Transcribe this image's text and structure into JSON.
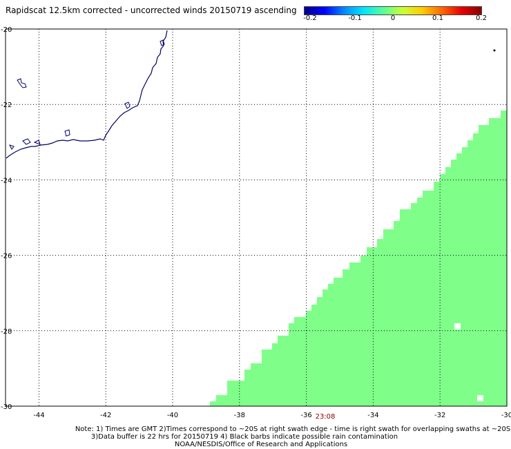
{
  "title": "Rapidscat 12.5km corrected - uncorrected winds 20150719 ascending",
  "colorbar": {
    "colors": [
      "#00008b",
      "#0000ff",
      "#0088ff",
      "#00e5ff",
      "#55ff99",
      "#ccff33",
      "#ffcc00",
      "#ff6600",
      "#e60000",
      "#8b0000"
    ],
    "labels": [
      "-0.2",
      "-0.1",
      "0",
      "0.1",
      "0.2"
    ]
  },
  "map": {
    "lon_ticks": [
      "-44",
      "-42",
      "-40",
      "-38",
      "-36",
      "-34",
      "-32",
      "-30"
    ],
    "lat_ticks": [
      "-20",
      "-22",
      "-24",
      "-26",
      "-28",
      "-30"
    ],
    "lon_range": [
      -45,
      -30
    ],
    "lat_range": [
      -30,
      -20
    ],
    "coast_color": "#000066",
    "swath_color": "#7fff8a",
    "grid": true
  },
  "time_label": "23:08",
  "notes": [
    "Note: 1) Times are GMT 2)Times correspond to ~20S at right swath edge - time is right swath for overlapping swaths at ~20S",
    "3)Data buffer is 22 hrs for 20150719 4) Black barbs indicate possible rain contamination",
    "NOAA/NESDIS/Office of Research and Applications"
  ]
}
